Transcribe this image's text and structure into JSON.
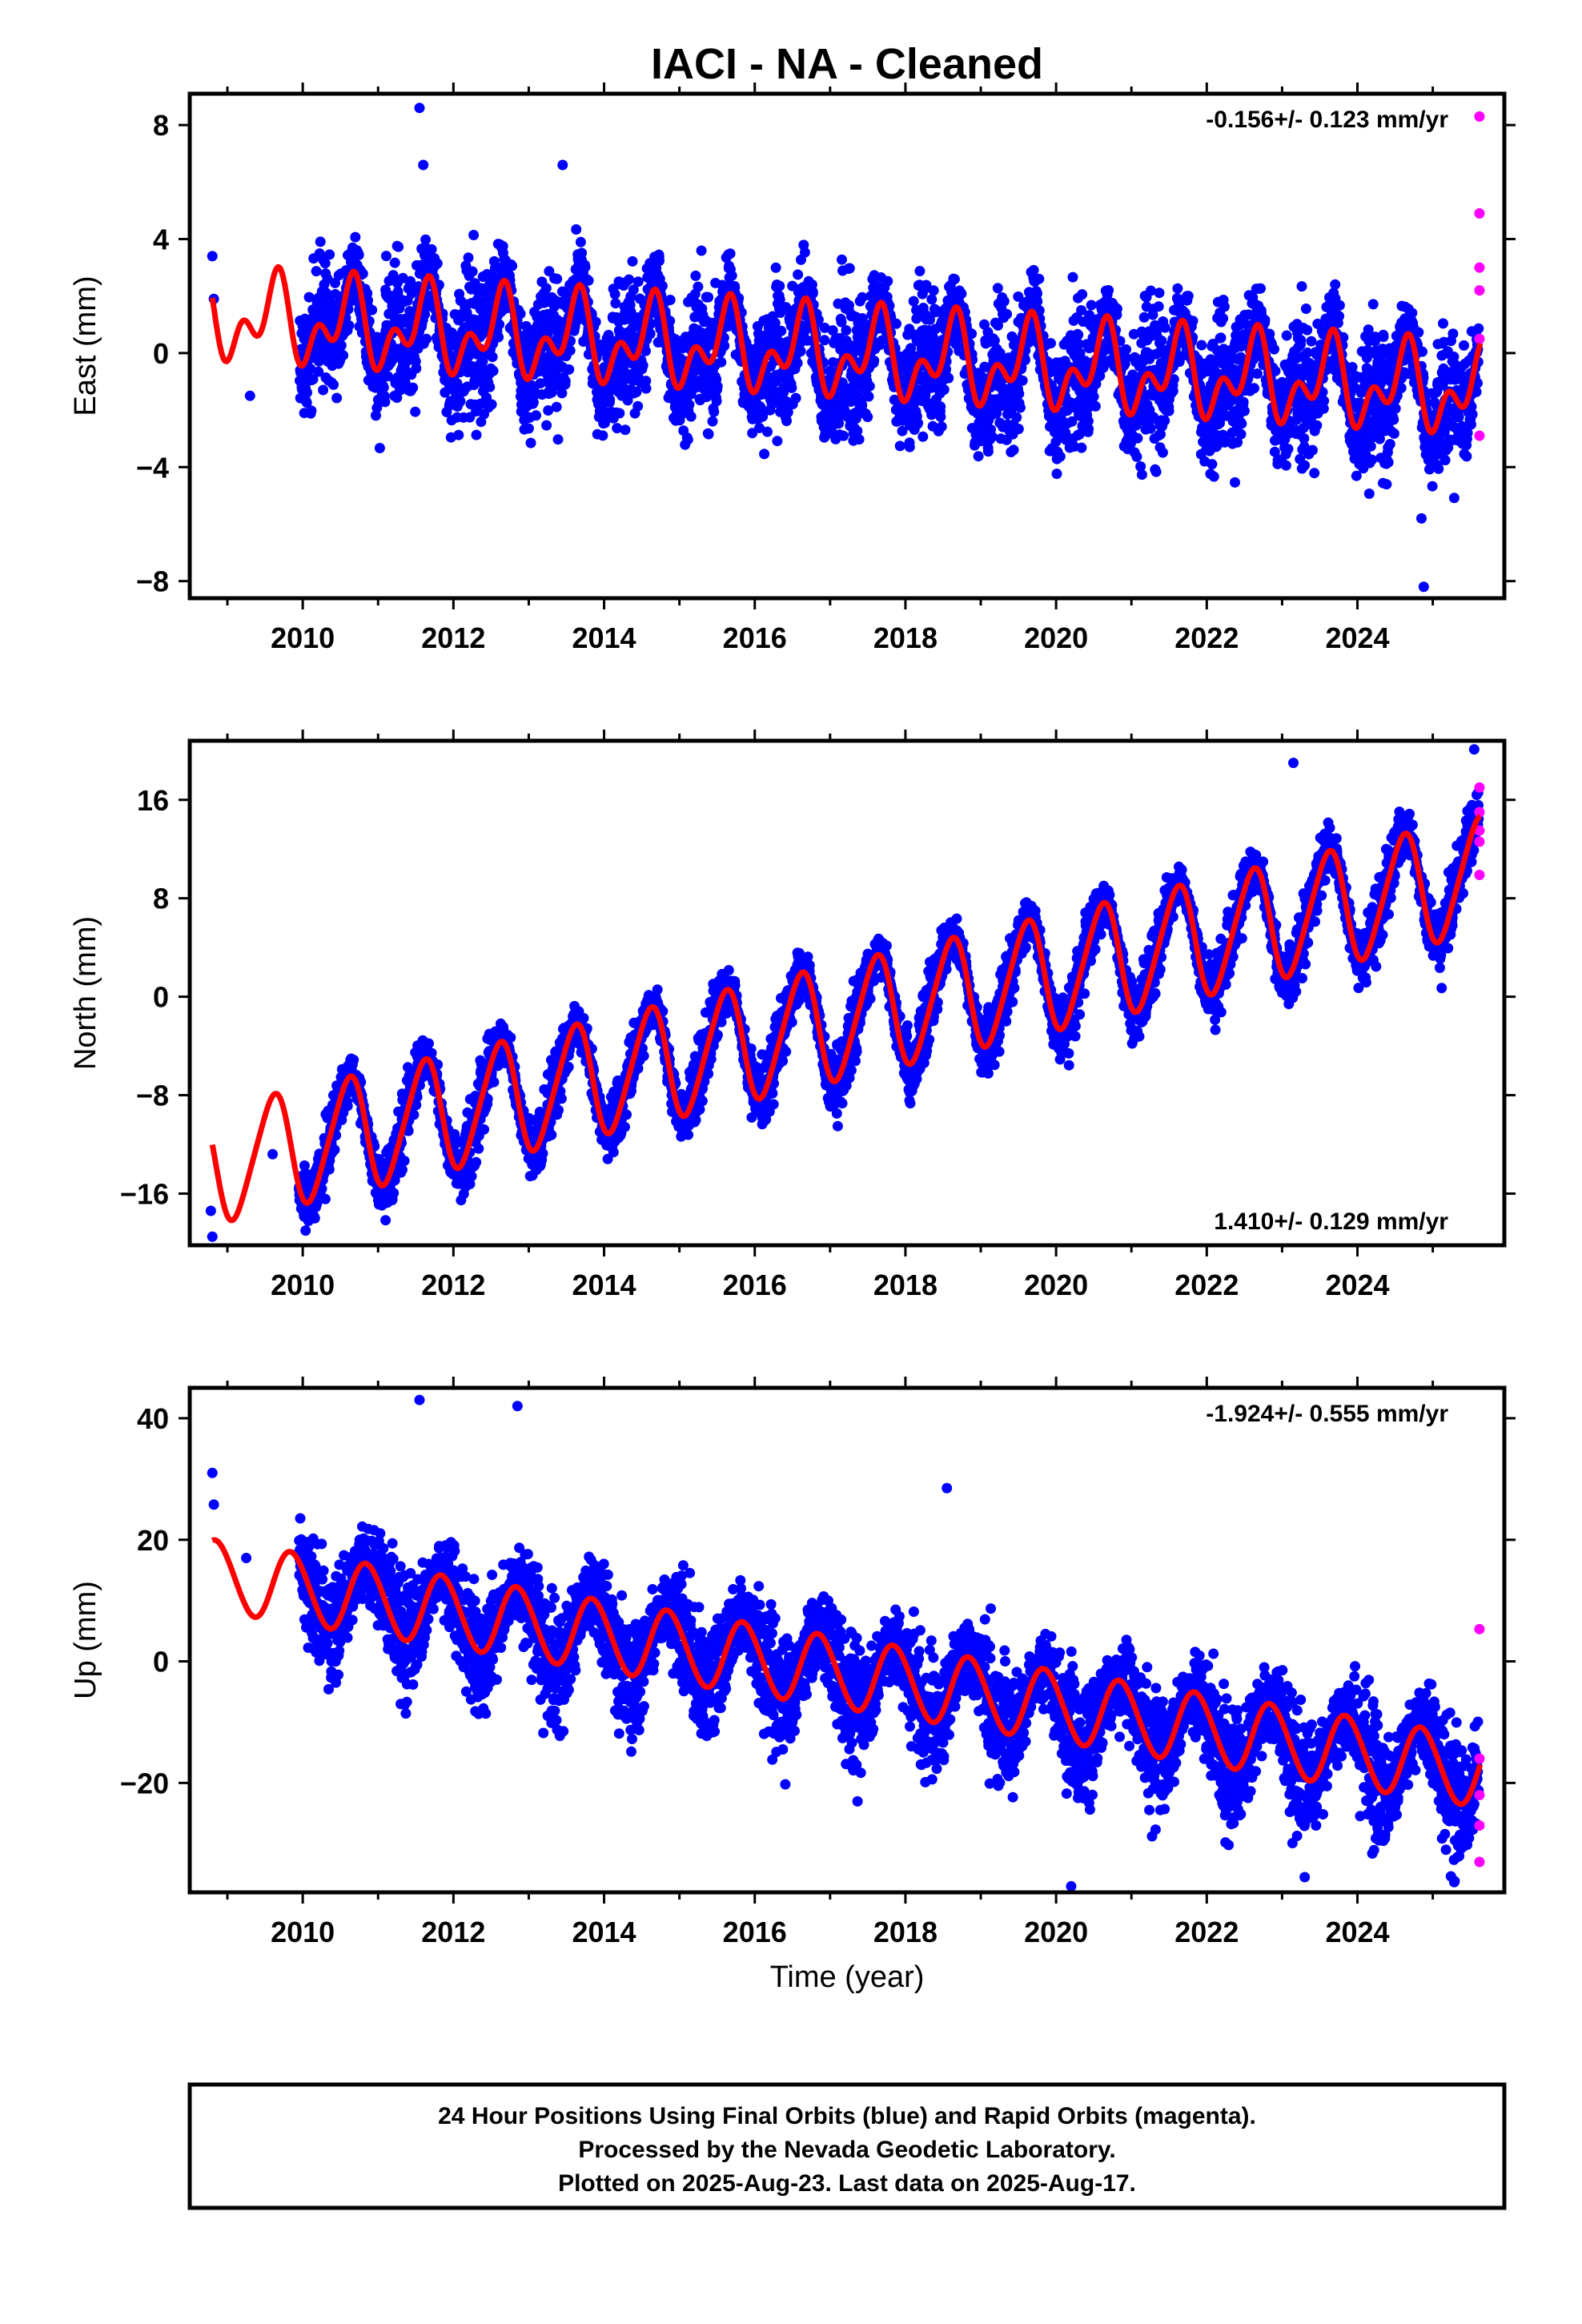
{
  "title": "IACI  - NA - Cleaned",
  "footer": {
    "lines": [
      "24 Hour Positions Using Final Orbits (blue) and Rapid Orbits (magenta).",
      "Processed by the Nevada Geodetic Laboratory.",
      "Plotted on 2025-Aug-23. Last data on 2025-Aug-17."
    ]
  },
  "colors": {
    "final_orbits": "#0000ff",
    "rapid_orbits": "#ff00ff",
    "model_fit": "#ff0000",
    "frame": "#000000"
  },
  "chart_data": [
    {
      "type": "scatter",
      "ylabel": "East (mm)",
      "xlabel": "",
      "rate_label": "-0.156+/- 0.123 mm/yr",
      "rate_position": "top-right",
      "xlim": [
        2008.5,
        2025.95
      ],
      "ylim": [
        -8.6,
        9.1
      ],
      "yticks": [
        -8,
        -4,
        0,
        4,
        8
      ],
      "ytick_labels": [
        "−8",
        "−4",
        "0",
        "4",
        "8"
      ],
      "xticks": [
        2010,
        2012,
        2014,
        2016,
        2018,
        2020,
        2022,
        2024
      ],
      "xtick_labels": [
        "2010",
        "2012",
        "2014",
        "2016",
        "2018",
        "2020",
        "2022",
        "2024"
      ],
      "model": {
        "offset": 1.25,
        "rate": -0.156,
        "annual_amp": 1.1,
        "annual_phase": 0.37,
        "semiannual_amp": 0.9,
        "semiannual_phase": 0.07,
        "start": 2008.8,
        "end": 2025.63
      },
      "scatter_spread": 1.15,
      "data_start": 2009.95,
      "data_end": 2025.61,
      "early_points": [
        [
          2008.8,
          3.4
        ],
        [
          2008.82,
          1.9
        ],
        [
          2009.3,
          -1.5
        ]
      ],
      "outliers": [
        [
          2011.55,
          8.6
        ],
        [
          2011.6,
          6.6
        ],
        [
          2013.45,
          6.6
        ],
        [
          2024.85,
          -5.8
        ],
        [
          2024.88,
          -8.2
        ]
      ],
      "rapid_points": [
        [
          2025.62,
          8.3
        ],
        [
          2025.62,
          4.9
        ],
        [
          2025.62,
          3.0
        ],
        [
          2025.62,
          2.2
        ],
        [
          2025.62,
          0.5
        ],
        [
          2025.62,
          -2.9
        ]
      ]
    },
    {
      "type": "scatter",
      "ylabel": "North (mm)",
      "xlabel": "",
      "rate_label": "1.410+/- 0.129 mm/yr",
      "rate_position": "bottom-right",
      "xlim": [
        2008.5,
        2025.95
      ],
      "ylim": [
        -20.2,
        20.8
      ],
      "yticks": [
        -16,
        -8,
        0,
        8,
        16
      ],
      "ytick_labels": [
        "−16",
        "−8",
        "0",
        "8",
        "16"
      ],
      "xticks": [
        2010,
        2012,
        2014,
        2016,
        2018,
        2020,
        2022,
        2024
      ],
      "xtick_labels": [
        "2010",
        "2012",
        "2014",
        "2016",
        "2018",
        "2020",
        "2022",
        "2024"
      ],
      "model": {
        "offset": -13.8,
        "rate": 1.41,
        "annual_amp": 4.6,
        "annual_phase": 0.35,
        "semiannual_amp": 0.6,
        "semiannual_phase": 0.1,
        "start": 2008.8,
        "end": 2025.63
      },
      "scatter_spread": 1.3,
      "data_start": 2009.95,
      "data_end": 2025.61,
      "early_points": [
        [
          2008.78,
          -17.4
        ],
        [
          2008.8,
          -19.5
        ],
        [
          2009.6,
          -12.8
        ]
      ],
      "outliers": [
        [
          2025.55,
          20.1
        ],
        [
          2023.15,
          19.0
        ]
      ],
      "rapid_points": [
        [
          2025.62,
          17.0
        ],
        [
          2025.62,
          15.0
        ],
        [
          2025.62,
          13.5
        ],
        [
          2025.62,
          12.6
        ],
        [
          2025.62,
          9.9
        ]
      ]
    },
    {
      "type": "scatter",
      "ylabel": "Up (mm)",
      "xlabel": "Time (year)",
      "rate_label": "-1.924+/- 0.555 mm/yr",
      "rate_position": "top-right",
      "xlim": [
        2008.5,
        2025.95
      ],
      "ylim": [
        -38,
        45
      ],
      "yticks": [
        -20,
        0,
        20,
        40
      ],
      "ytick_labels": [
        "−20",
        "0",
        "20",
        "40"
      ],
      "xticks": [
        2010,
        2012,
        2014,
        2016,
        2018,
        2020,
        2022,
        2024
      ],
      "xtick_labels": [
        "2010",
        "2012",
        "2014",
        "2016",
        "2018",
        "2020",
        "2022",
        "2024"
      ],
      "model": {
        "offset": 14.2,
        "rate": -1.924,
        "annual_amp": 5.8,
        "annual_phase": 0.6,
        "semiannual_amp": 0.3,
        "semiannual_phase": 0.1,
        "start": 2008.8,
        "end": 2025.63
      },
      "scatter_spread": 4.8,
      "data_start": 2009.95,
      "data_end": 2025.61,
      "early_points": [
        [
          2008.8,
          31.0
        ],
        [
          2008.82,
          25.8
        ],
        [
          2009.25,
          17.0
        ]
      ],
      "outliers": [
        [
          2011.55,
          43.0
        ],
        [
          2012.85,
          42.0
        ],
        [
          2018.55,
          28.5
        ],
        [
          2020.2,
          -37.0
        ],
        [
          2023.3,
          -35.5
        ]
      ],
      "rapid_points": [
        [
          2025.62,
          5.3
        ],
        [
          2025.62,
          -16.0
        ],
        [
          2025.62,
          -22.0
        ],
        [
          2025.62,
          -27.0
        ],
        [
          2025.62,
          -33.0
        ]
      ]
    }
  ]
}
